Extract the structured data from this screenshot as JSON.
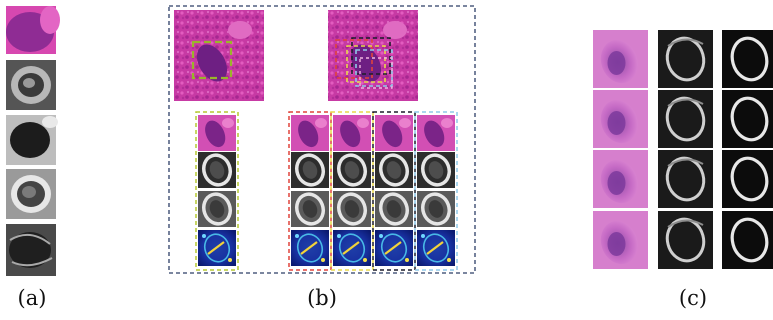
{
  "captions": {
    "a": "(a)",
    "b": "(b)",
    "c": "(c)"
  },
  "panels": {
    "a": {
      "tiles": [
        "he-stain",
        "gray",
        "gray",
        "gray",
        "gray"
      ]
    },
    "b": {
      "top_images": [
        "he-stain-with-green-box",
        "he-stain-with-multicolor-boxes"
      ],
      "columns": [
        {
          "frame_color": "#b5c932",
          "rows": [
            "he-stain",
            "gray",
            "gray",
            "heatmap"
          ]
        },
        {
          "frame_color": "#e0433b",
          "rows": [
            "he-stain",
            "gray",
            "gray",
            "heatmap"
          ]
        },
        {
          "frame_color": "#e8d84a",
          "rows": [
            "he-stain",
            "gray",
            "gray",
            "heatmap"
          ]
        },
        {
          "frame_color": "#1d1d2b",
          "rows": [
            "he-stain",
            "gray",
            "gray",
            "heatmap"
          ]
        },
        {
          "frame_color": "#8fc9e8",
          "rows": [
            "he-stain",
            "gray",
            "gray",
            "heatmap"
          ]
        }
      ],
      "outer_frame_color": "#2c3e66"
    },
    "c": {
      "columns": [
        "he-stain",
        "gray-edges",
        "dark-ring"
      ],
      "rows": 4
    }
  }
}
